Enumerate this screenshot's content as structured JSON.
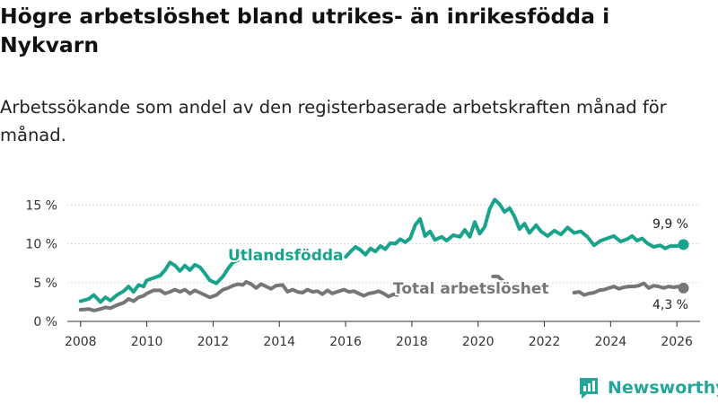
{
  "header": {
    "title": "Högre arbetslöshet bland utrikes- än inrikesfödda i Nykvarn",
    "subtitle": "Arbetssökande som andel av den registerbaserade arbetskraften månad för månad."
  },
  "brand": {
    "name": "Newsworthy",
    "color": "#26a69a",
    "icon": "newsworthy-logo-icon"
  },
  "chart_data": {
    "type": "line",
    "title": "Högre arbetslöshet bland utrikes- än inrikesfödda i Nykvarn",
    "subtitle": "Arbetssökande som andel av den registerbaserade arbetskraften månad för månad.",
    "xlabel": "",
    "ylabel": "",
    "xlim": [
      2007.6,
      2026.7
    ],
    "ylim": [
      0,
      16
    ],
    "xticks": [
      2008,
      2010,
      2012,
      2014,
      2016,
      2018,
      2020,
      2022,
      2024,
      2026
    ],
    "xtick_labels": [
      "2008",
      "2010",
      "2012",
      "2014",
      "2016",
      "2018",
      "2020",
      "2022",
      "2024",
      "2026"
    ],
    "yticks": [
      0,
      5,
      10,
      15
    ],
    "ytick_labels": [
      "0 %",
      "5 %",
      "10 %",
      "15 %"
    ],
    "grid": "horizontal",
    "series": [
      {
        "name": "Utlandsfödda",
        "color": "#1aa38c",
        "label_text": "Utlandsfödda",
        "end_label": "9,9 %",
        "end_value": 9.9,
        "points": [
          [
            2008.0,
            2.6
          ],
          [
            2008.25,
            2.9
          ],
          [
            2008.4,
            3.4
          ],
          [
            2008.6,
            2.5
          ],
          [
            2008.75,
            3.1
          ],
          [
            2008.9,
            2.7
          ],
          [
            2009.1,
            3.4
          ],
          [
            2009.3,
            3.9
          ],
          [
            2009.45,
            4.5
          ],
          [
            2009.6,
            3.8
          ],
          [
            2009.75,
            4.7
          ],
          [
            2009.9,
            4.5
          ],
          [
            2010.0,
            5.3
          ],
          [
            2010.2,
            5.6
          ],
          [
            2010.4,
            5.9
          ],
          [
            2010.55,
            6.6
          ],
          [
            2010.7,
            7.6
          ],
          [
            2010.85,
            7.2
          ],
          [
            2011.0,
            6.5
          ],
          [
            2011.15,
            7.2
          ],
          [
            2011.3,
            6.6
          ],
          [
            2011.45,
            7.3
          ],
          [
            2011.6,
            7.0
          ],
          [
            2011.75,
            6.2
          ],
          [
            2011.9,
            5.3
          ],
          [
            2012.1,
            4.9
          ],
          [
            2012.3,
            5.8
          ],
          [
            2012.45,
            6.8
          ],
          [
            2012.6,
            7.6
          ],
          [
            2012.75,
            7.9
          ],
          [
            2016.0,
            8.3
          ],
          [
            2016.15,
            9.0
          ],
          [
            2016.3,
            9.6
          ],
          [
            2016.45,
            9.2
          ],
          [
            2016.6,
            8.6
          ],
          [
            2016.75,
            9.4
          ],
          [
            2016.9,
            9.0
          ],
          [
            2017.05,
            9.7
          ],
          [
            2017.2,
            9.3
          ],
          [
            2017.35,
            10.1
          ],
          [
            2017.5,
            10.0
          ],
          [
            2017.65,
            10.6
          ],
          [
            2017.8,
            10.2
          ],
          [
            2017.95,
            10.7
          ],
          [
            2018.1,
            12.4
          ],
          [
            2018.25,
            13.2
          ],
          [
            2018.4,
            11.0
          ],
          [
            2018.55,
            11.6
          ],
          [
            2018.7,
            10.5
          ],
          [
            2018.9,
            10.9
          ],
          [
            2019.05,
            10.4
          ],
          [
            2019.25,
            11.1
          ],
          [
            2019.45,
            10.9
          ],
          [
            2019.6,
            11.8
          ],
          [
            2019.75,
            10.9
          ],
          [
            2019.9,
            12.8
          ],
          [
            2020.05,
            11.3
          ],
          [
            2020.2,
            12.2
          ],
          [
            2020.35,
            14.5
          ],
          [
            2020.5,
            15.7
          ],
          [
            2020.65,
            15.1
          ],
          [
            2020.8,
            14.1
          ],
          [
            2020.95,
            14.6
          ],
          [
            2021.1,
            13.5
          ],
          [
            2021.25,
            11.9
          ],
          [
            2021.4,
            12.6
          ],
          [
            2021.55,
            11.4
          ],
          [
            2021.75,
            12.4
          ],
          [
            2021.9,
            11.6
          ],
          [
            2022.1,
            11.0
          ],
          [
            2022.3,
            11.7
          ],
          [
            2022.5,
            11.2
          ],
          [
            2022.7,
            12.1
          ],
          [
            2022.9,
            11.4
          ],
          [
            2023.1,
            11.6
          ],
          [
            2023.3,
            10.9
          ],
          [
            2023.5,
            9.8
          ],
          [
            2023.7,
            10.4
          ],
          [
            2023.9,
            10.7
          ],
          [
            2024.1,
            11.0
          ],
          [
            2024.3,
            10.3
          ],
          [
            2024.5,
            10.6
          ],
          [
            2024.65,
            11.0
          ],
          [
            2024.8,
            10.4
          ],
          [
            2024.95,
            10.7
          ],
          [
            2025.1,
            10.1
          ],
          [
            2025.3,
            9.6
          ],
          [
            2025.5,
            9.8
          ],
          [
            2025.65,
            9.4
          ],
          [
            2025.8,
            9.7
          ],
          [
            2026.0,
            9.7
          ],
          [
            2026.2,
            9.9
          ]
        ]
      },
      {
        "name": "Total arbetslöshet",
        "color": "#767676",
        "label_text": "Total arbetslöshet",
        "end_label": "4,3 %",
        "end_value": 4.3,
        "points": [
          [
            2008.0,
            1.5
          ],
          [
            2008.25,
            1.6
          ],
          [
            2008.4,
            1.4
          ],
          [
            2008.6,
            1.6
          ],
          [
            2008.75,
            1.8
          ],
          [
            2008.9,
            1.7
          ],
          [
            2009.1,
            2.1
          ],
          [
            2009.3,
            2.4
          ],
          [
            2009.45,
            2.9
          ],
          [
            2009.6,
            2.6
          ],
          [
            2009.75,
            3.1
          ],
          [
            2009.9,
            3.3
          ],
          [
            2010.0,
            3.6
          ],
          [
            2010.2,
            4.0
          ],
          [
            2010.4,
            4.0
          ],
          [
            2010.55,
            3.6
          ],
          [
            2010.7,
            3.8
          ],
          [
            2010.85,
            4.1
          ],
          [
            2011.0,
            3.8
          ],
          [
            2011.15,
            4.1
          ],
          [
            2011.3,
            3.6
          ],
          [
            2011.45,
            4.0
          ],
          [
            2011.6,
            3.7
          ],
          [
            2011.75,
            3.4
          ],
          [
            2011.9,
            3.1
          ],
          [
            2012.1,
            3.4
          ],
          [
            2012.3,
            4.1
          ],
          [
            2012.45,
            4.3
          ],
          [
            2012.6,
            4.6
          ],
          [
            2012.75,
            4.8
          ],
          [
            2012.9,
            4.7
          ],
          [
            2013.0,
            5.1
          ],
          [
            2013.15,
            4.8
          ],
          [
            2013.3,
            4.3
          ],
          [
            2013.45,
            4.8
          ],
          [
            2013.6,
            4.5
          ],
          [
            2013.75,
            4.2
          ],
          [
            2013.9,
            4.6
          ],
          [
            2014.1,
            4.7
          ],
          [
            2014.25,
            3.8
          ],
          [
            2014.4,
            4.1
          ],
          [
            2014.55,
            3.8
          ],
          [
            2014.7,
            3.7
          ],
          [
            2014.85,
            4.1
          ],
          [
            2015.0,
            3.8
          ],
          [
            2015.15,
            3.9
          ],
          [
            2015.3,
            3.5
          ],
          [
            2015.45,
            4.0
          ],
          [
            2015.6,
            3.6
          ],
          [
            2015.8,
            3.9
          ],
          [
            2015.95,
            4.1
          ],
          [
            2016.1,
            3.8
          ],
          [
            2016.25,
            3.9
          ],
          [
            2016.4,
            3.6
          ],
          [
            2016.55,
            3.3
          ],
          [
            2016.7,
            3.6
          ],
          [
            2016.85,
            3.7
          ],
          [
            2017.0,
            3.9
          ],
          [
            2017.15,
            3.6
          ],
          [
            2017.3,
            3.2
          ],
          [
            2017.45,
            3.5
          ],
          [
            2017.55,
            3.4
          ],
          [
            2020.45,
            5.8
          ],
          [
            2020.6,
            5.8
          ],
          [
            2020.75,
            5.2
          ],
          [
            2022.9,
            3.7
          ],
          [
            2023.05,
            3.8
          ],
          [
            2023.2,
            3.4
          ],
          [
            2023.35,
            3.6
          ],
          [
            2023.5,
            3.7
          ],
          [
            2023.65,
            4.0
          ],
          [
            2023.8,
            4.1
          ],
          [
            2023.95,
            4.3
          ],
          [
            2024.1,
            4.5
          ],
          [
            2024.25,
            4.2
          ],
          [
            2024.4,
            4.4
          ],
          [
            2024.55,
            4.5
          ],
          [
            2024.7,
            4.5
          ],
          [
            2024.85,
            4.6
          ],
          [
            2025.0,
            4.9
          ],
          [
            2025.15,
            4.3
          ],
          [
            2025.3,
            4.6
          ],
          [
            2025.45,
            4.5
          ],
          [
            2025.6,
            4.3
          ],
          [
            2025.75,
            4.5
          ],
          [
            2025.9,
            4.4
          ],
          [
            2026.05,
            4.5
          ],
          [
            2026.2,
            4.3
          ]
        ]
      }
    ]
  }
}
